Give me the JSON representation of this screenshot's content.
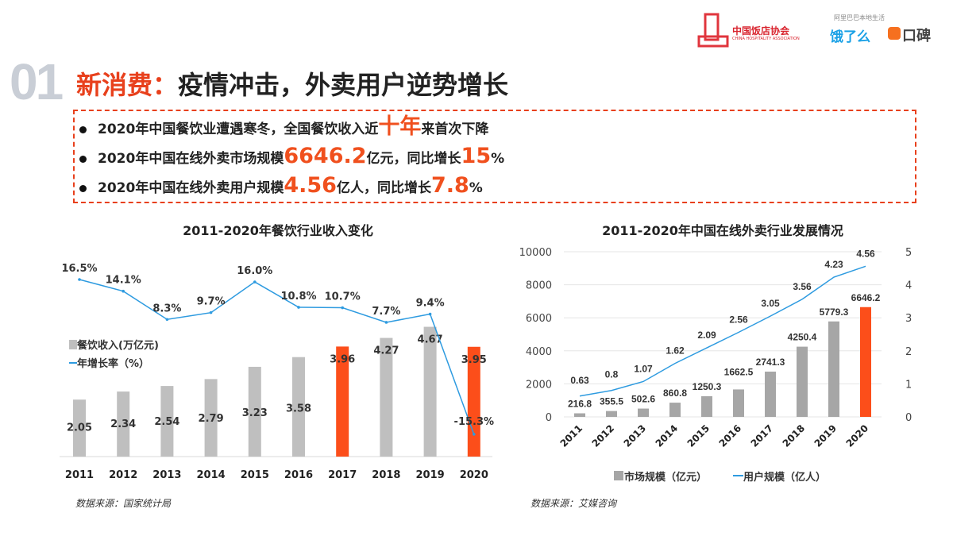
{
  "header": {
    "logo_association": "中国饭店协会",
    "logo_association_en": "CHINA HOSPITALITY ASSOCIATION",
    "logo_tagline": "阿里巴巴本地生活",
    "logo_eleme": "饿了么",
    "logo_koubei": "口碑"
  },
  "title": {
    "number": "01",
    "prefix": "新消费：",
    "text": "疫情冲击，外卖用户逆势增长"
  },
  "bullets": [
    {
      "pre": "2020年中国餐饮业遭遇寒冬，全国餐饮收入近",
      "big": "十年",
      "post": "来首次下降",
      "big2": "",
      "post2": ""
    },
    {
      "pre": "2020年中国在线外卖市场规模",
      "big": "6646.2",
      "post": "亿元，同比增长",
      "big2": "15",
      "post2": "%"
    },
    {
      "pre": "2020年中国在线外卖用户规模",
      "big": "4.56",
      "post": "亿人，同比增长",
      "big2": "7.8",
      "post2": "%"
    }
  ],
  "colors": {
    "accent": "#e8401c",
    "bar_gray": "#bfbfbf",
    "bar_gray_dark": "#a6a6a6",
    "bar_highlight": "#fc4e1a",
    "line": "#2e9be0"
  },
  "chart_data": [
    {
      "type": "bar",
      "title": "2011-2020年餐饮行业收入变化",
      "source": "数据来源：国家统计局",
      "categories": [
        "2011",
        "2012",
        "2013",
        "2014",
        "2015",
        "2016",
        "2017",
        "2018",
        "2019",
        "2020"
      ],
      "series": [
        {
          "name": "餐饮收入(万亿元)",
          "type": "bar",
          "values": [
            2.05,
            2.34,
            2.54,
            2.79,
            3.23,
            3.58,
            3.96,
            4.27,
            4.67,
            3.95
          ],
          "highlight": [
            "2017",
            "2020"
          ],
          "labels": [
            "2.05",
            "2.34",
            "2.54",
            "2.79",
            "3.23",
            "3.58",
            "3.96",
            "4.27",
            "4.67",
            "3.95"
          ]
        },
        {
          "name": "年增长率（%）",
          "type": "line",
          "values": [
            16.5,
            14.1,
            8.3,
            9.7,
            16.0,
            10.8,
            10.7,
            7.7,
            9.4,
            -15.3
          ],
          "labels": [
            "16.5%",
            "14.1%",
            "8.3%",
            "9.7%",
            "16.0%",
            "10.8%",
            "10.7%",
            "7.7%",
            "9.4%",
            "-15.3%"
          ]
        }
      ],
      "legend": "left",
      "grid": false
    },
    {
      "type": "bar",
      "title": "2011-2020年中国在线外卖行业发展情况",
      "source": "数据来源：艾媒咨询",
      "categories": [
        "2011",
        "2012",
        "2013",
        "2014",
        "2015",
        "2016",
        "2017",
        "2018",
        "2019",
        "2020"
      ],
      "y_left": {
        "ticks": [
          "0",
          "2000",
          "4000",
          "6000",
          "8000",
          "10000"
        ],
        "range": [
          0,
          10000
        ]
      },
      "y_right": {
        "ticks": [
          "0",
          "1",
          "2",
          "3",
          "4",
          "5"
        ],
        "range": [
          0,
          5
        ]
      },
      "series": [
        {
          "name": "市场规模（亿元）",
          "type": "bar",
          "axis": "left",
          "values": [
            216.8,
            355.5,
            502.6,
            860.8,
            1250.3,
            1662.5,
            2741.3,
            4250.4,
            5779.3,
            6646.2
          ],
          "highlight": [
            "2020"
          ],
          "labels": [
            "216.8",
            "355.5",
            "502.6",
            "860.8",
            "1250.3",
            "1662.5",
            "2741.3",
            "4250.4",
            "5779.3",
            "6646.2"
          ]
        },
        {
          "name": "用户规模（亿人）",
          "type": "line",
          "axis": "right",
          "values": [
            0.63,
            0.8,
            1.07,
            1.62,
            2.09,
            2.56,
            3.05,
            3.56,
            4.23,
            4.56
          ],
          "labels": [
            "0.63",
            "0.8",
            "1.07",
            "1.62",
            "2.09",
            "2.56",
            "3.05",
            "3.56",
            "4.23",
            "4.56"
          ]
        }
      ],
      "legend": "bottom",
      "grid": true
    }
  ]
}
